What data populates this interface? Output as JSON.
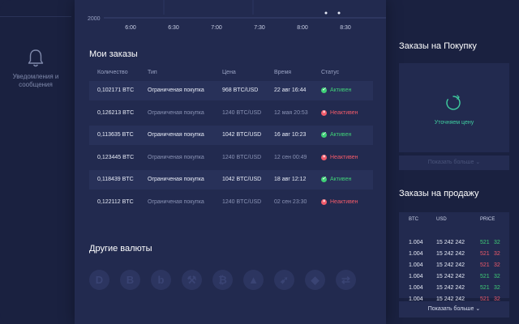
{
  "sidebar": {
    "notifications_label": "Уведомления и сообщения",
    "notifications_icon": "bell-icon"
  },
  "chart": {
    "y_tick": "2000",
    "x_ticks": [
      "6:00",
      "6:30",
      "7:00",
      "7:30",
      "8:00",
      "8:30"
    ]
  },
  "orders": {
    "title": "Мои заказы",
    "columns": [
      "Количество",
      "Тип",
      "Цена",
      "Время",
      "Статус"
    ],
    "rows": [
      {
        "qty": "0,102171 BTC",
        "type": "Ограниченая покупка",
        "price": "968 BTC/USD",
        "time": "22 авг 16:44",
        "status": "Активен",
        "active": true
      },
      {
        "qty": "0,126213 BTC",
        "type": "Ограниченая покупка",
        "price": "1240 BTC/USD",
        "time": "12 мая 20:53",
        "status": "Неактивен",
        "active": false
      },
      {
        "qty": "0,113635 BTC",
        "type": "Ограниченая покупка",
        "price": "1042 BTC/USD",
        "time": "16 авг 10:23",
        "status": "Активен",
        "active": true
      },
      {
        "qty": "0,123445 BTC",
        "type": "Ограниченая покупка",
        "price": "1240 BTC/USD",
        "time": "12 сен 00:49",
        "status": "Неактивен",
        "active": false
      },
      {
        "qty": "0,118439 BTC",
        "type": "Ограниченая покупка",
        "price": "1042 BTC/USD",
        "time": "18 авг 12:12",
        "status": "Активен",
        "active": true
      },
      {
        "qty": "0,122112 BTC",
        "type": "Ограниченая покупка",
        "price": "1240 BTC/USD",
        "time": "02 сен 23:30",
        "status": "Неактивен",
        "active": false
      }
    ]
  },
  "currencies": {
    "title": "Другие валюты",
    "icons": [
      "dash-icon",
      "bitcoin-b-icon",
      "bitcoin-gold-icon",
      "wrench-coin-icon",
      "bitcoin-icon",
      "arrow-coin-icon",
      "hare-coin-icon",
      "crystal-coin-icon",
      "swap-coin-icon"
    ],
    "glyphs": [
      "D",
      "B",
      "b",
      "⚒",
      "₿",
      "▲",
      "➹",
      "◆",
      "⇄"
    ]
  },
  "buy": {
    "title": "Заказы на Покупку",
    "loading_text": "Уточняем цену",
    "more_label": "Показать больше"
  },
  "sell": {
    "title": "Заказы на продажу",
    "columns": [
      "BTC",
      "USD",
      "PRICE"
    ],
    "rows": [
      {
        "btc": "1.004",
        "usd": "15 242 242",
        "price_a": "521",
        "price_b": "32",
        "color": "green"
      },
      {
        "btc": "1.004",
        "usd": "15 242 242",
        "price_a": "521",
        "price_b": "32",
        "color": "red"
      },
      {
        "btc": "1.004",
        "usd": "15 242 242",
        "price_a": "521",
        "price_b": "32",
        "color": "red"
      },
      {
        "btc": "1.004",
        "usd": "15 242 242",
        "price_a": "521",
        "price_b": "32",
        "color": "green"
      },
      {
        "btc": "1.004",
        "usd": "15 242 242",
        "price_a": "521",
        "price_b": "32",
        "color": "green"
      },
      {
        "btc": "1.004",
        "usd": "15 242 242",
        "price_a": "521",
        "price_b": "32",
        "color": "red"
      }
    ],
    "more_label": "Показать больше"
  },
  "colors": {
    "accent_green": "#3fcf77",
    "accent_red": "#f05a6a",
    "panel": "#222a4f",
    "background": "#1a2140"
  }
}
